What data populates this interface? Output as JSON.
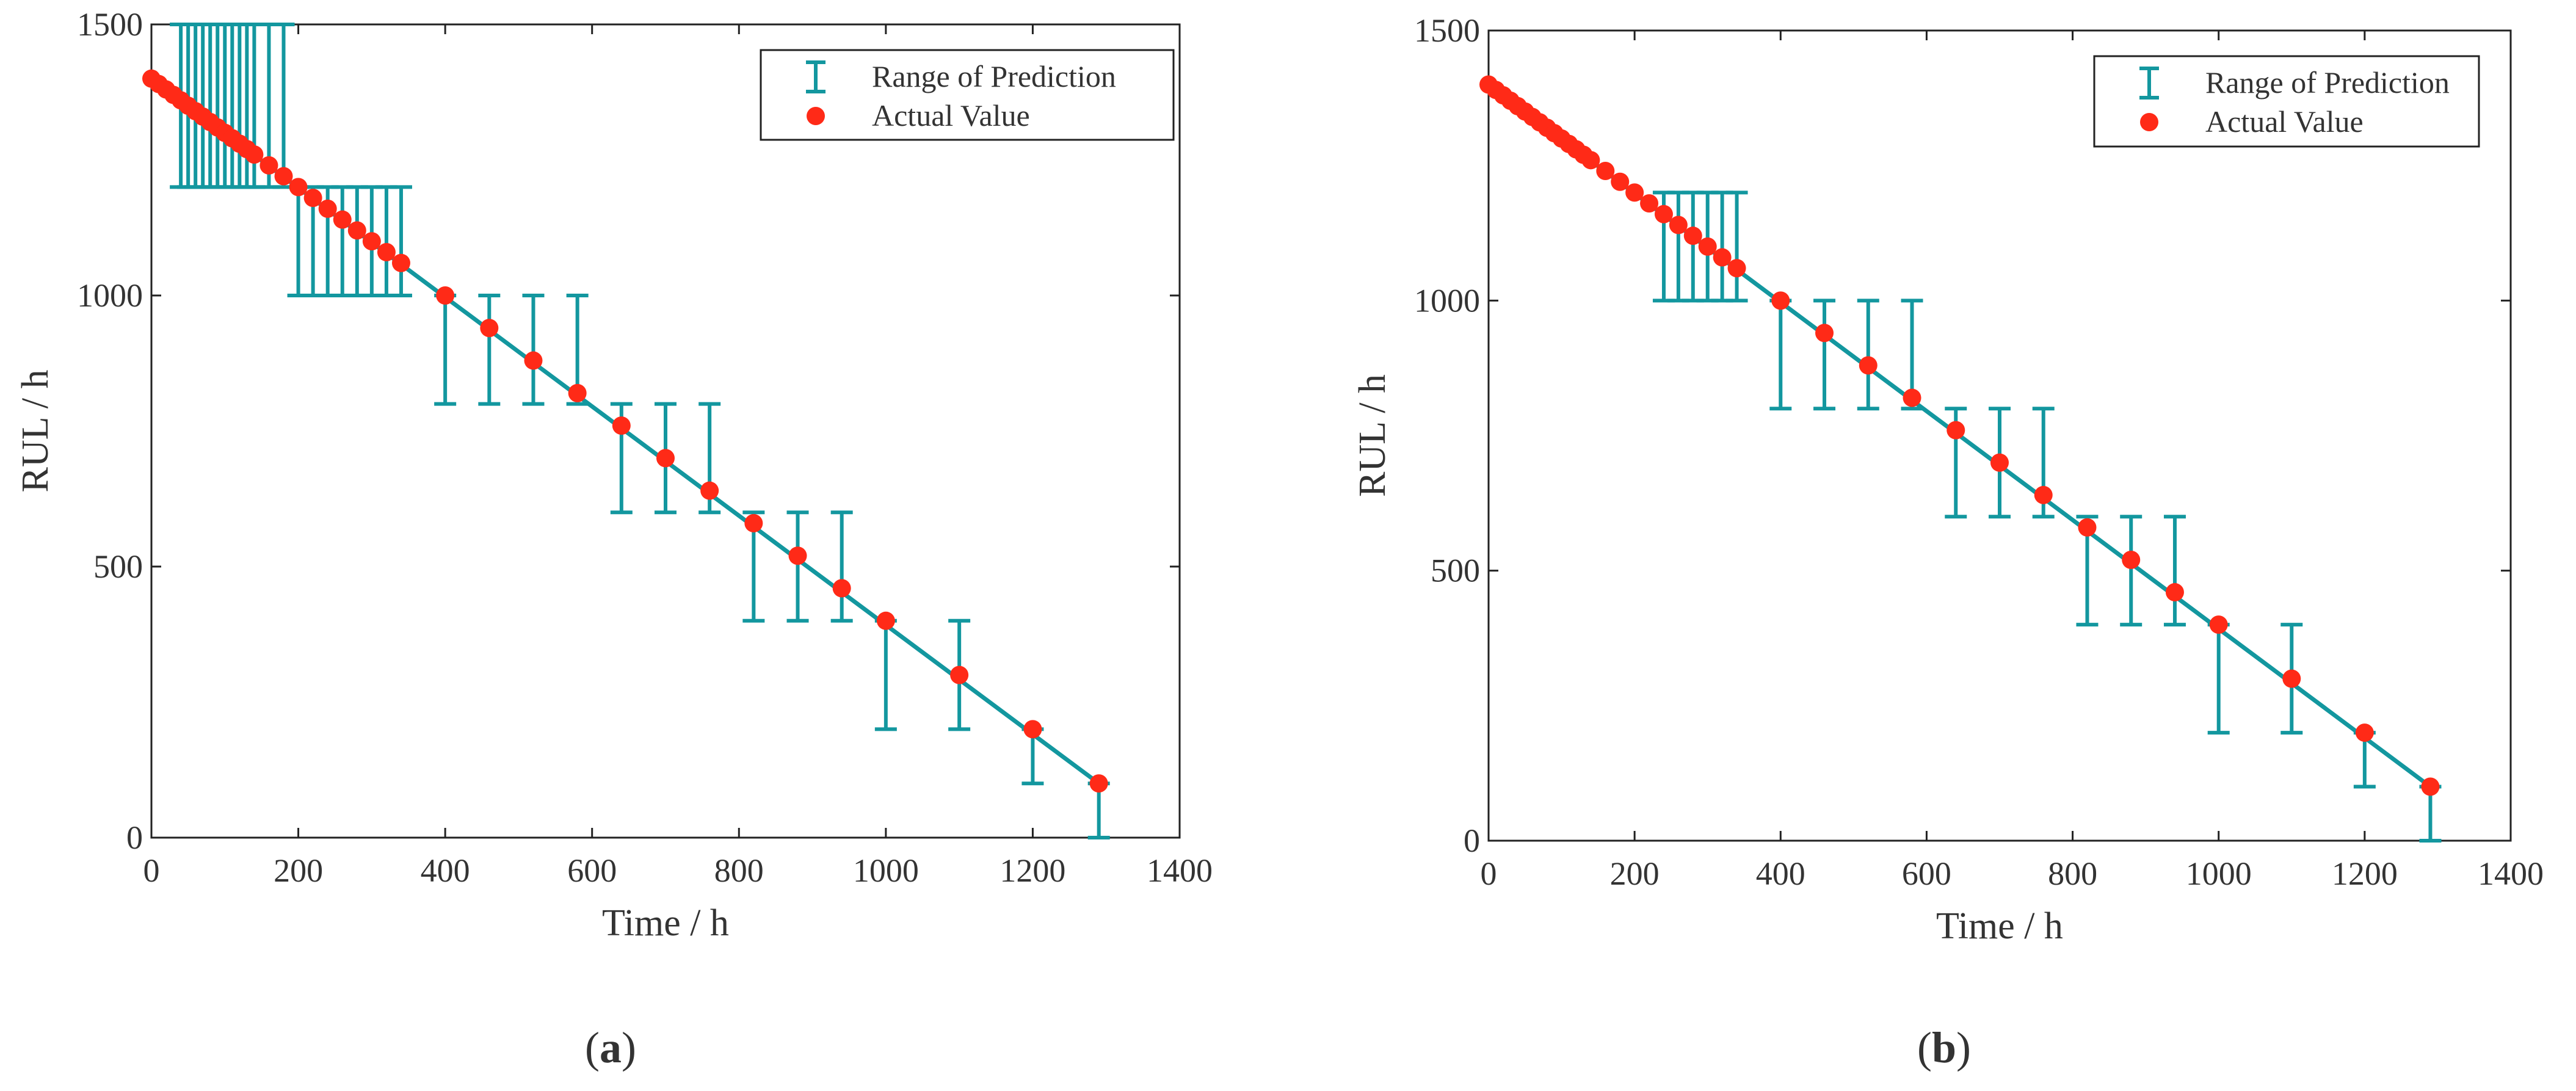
{
  "figure_captions": [
    {
      "open": "(",
      "letter": "a",
      "close": ")"
    },
    {
      "open": "(",
      "letter": "b",
      "close": ")"
    }
  ],
  "colors": {
    "range_bar": "#13979f",
    "actual_point": "#ff2a17",
    "axes": "#222222",
    "text": "#333333"
  },
  "chart_data": [
    {
      "id": "a",
      "type": "scatter",
      "xlabel": "Time / h",
      "ylabel": "RUL / h",
      "xlim": [
        0,
        1400
      ],
      "ylim": [
        0,
        1500
      ],
      "xticks": [
        0,
        200,
        400,
        600,
        800,
        1000,
        1200,
        1400
      ],
      "yticks": [
        0,
        500,
        1000,
        1500
      ],
      "legend": {
        "position": "top-right",
        "entries": [
          "Range of Prediction",
          "Actual Value"
        ]
      },
      "actual_line": {
        "x": [
          0,
          1290
        ],
        "y": [
          1400,
          100
        ]
      },
      "actual_points": {
        "x": [
          0,
          10,
          20,
          30,
          40,
          50,
          60,
          70,
          80,
          90,
          100,
          110,
          120,
          130,
          140,
          160,
          180,
          200,
          220,
          240,
          260,
          280,
          300,
          320,
          340,
          400,
          460,
          520,
          580,
          640,
          700,
          760,
          820,
          880,
          940,
          1000,
          1100,
          1200,
          1290
        ],
        "y": [
          1400,
          1390,
          1380,
          1370,
          1360,
          1350,
          1340,
          1330,
          1320,
          1310,
          1300,
          1290,
          1280,
          1270,
          1260,
          1240,
          1220,
          1200,
          1180,
          1160,
          1140,
          1120,
          1100,
          1080,
          1060,
          1000,
          940,
          880,
          820,
          760,
          700,
          640,
          580,
          520,
          460,
          400,
          300,
          200,
          100
        ]
      },
      "prediction_ranges": [
        {
          "x": 40,
          "low": 1200,
          "high": 1500
        },
        {
          "x": 50,
          "low": 1200,
          "high": 1500
        },
        {
          "x": 60,
          "low": 1200,
          "high": 1500
        },
        {
          "x": 70,
          "low": 1200,
          "high": 1500
        },
        {
          "x": 80,
          "low": 1200,
          "high": 1500
        },
        {
          "x": 90,
          "low": 1200,
          "high": 1500
        },
        {
          "x": 100,
          "low": 1200,
          "high": 1500
        },
        {
          "x": 110,
          "low": 1200,
          "high": 1500
        },
        {
          "x": 120,
          "low": 1200,
          "high": 1500
        },
        {
          "x": 130,
          "low": 1200,
          "high": 1500
        },
        {
          "x": 140,
          "low": 1200,
          "high": 1500
        },
        {
          "x": 160,
          "low": 1200,
          "high": 1500
        },
        {
          "x": 180,
          "low": 1200,
          "high": 1500
        },
        {
          "x": 200,
          "low": 1000,
          "high": 1200
        },
        {
          "x": 220,
          "low": 1000,
          "high": 1200
        },
        {
          "x": 240,
          "low": 1000,
          "high": 1200
        },
        {
          "x": 260,
          "low": 1000,
          "high": 1200
        },
        {
          "x": 280,
          "low": 1000,
          "high": 1200
        },
        {
          "x": 300,
          "low": 1000,
          "high": 1200
        },
        {
          "x": 320,
          "low": 1000,
          "high": 1200
        },
        {
          "x": 340,
          "low": 1000,
          "high": 1200
        },
        {
          "x": 400,
          "low": 800,
          "high": 1000
        },
        {
          "x": 460,
          "low": 800,
          "high": 1000
        },
        {
          "x": 520,
          "low": 800,
          "high": 1000
        },
        {
          "x": 580,
          "low": 800,
          "high": 1000
        },
        {
          "x": 640,
          "low": 600,
          "high": 800
        },
        {
          "x": 700,
          "low": 600,
          "high": 800
        },
        {
          "x": 760,
          "low": 600,
          "high": 800
        },
        {
          "x": 820,
          "low": 400,
          "high": 600
        },
        {
          "x": 880,
          "low": 400,
          "high": 600
        },
        {
          "x": 940,
          "low": 400,
          "high": 600
        },
        {
          "x": 1000,
          "low": 200,
          "high": 400
        },
        {
          "x": 1100,
          "low": 200,
          "high": 400
        },
        {
          "x": 1200,
          "low": 100,
          "high": 200
        },
        {
          "x": 1290,
          "low": 0,
          "high": 100
        }
      ]
    },
    {
      "id": "b",
      "type": "scatter",
      "xlabel": "Time / h",
      "ylabel": "RUL / h",
      "xlim": [
        0,
        1400
      ],
      "ylim": [
        0,
        1500
      ],
      "xticks": [
        0,
        200,
        400,
        600,
        800,
        1000,
        1200,
        1400
      ],
      "yticks": [
        0,
        500,
        1000,
        1500
      ],
      "legend": {
        "position": "top-right",
        "entries": [
          "Range of Prediction",
          "Actual Value"
        ]
      },
      "actual_line": {
        "x": [
          0,
          1290
        ],
        "y": [
          1400,
          100
        ]
      },
      "actual_points": {
        "x": [
          0,
          10,
          20,
          30,
          40,
          50,
          60,
          70,
          80,
          90,
          100,
          110,
          120,
          130,
          140,
          160,
          180,
          200,
          220,
          240,
          260,
          280,
          300,
          320,
          340,
          400,
          460,
          520,
          580,
          640,
          700,
          760,
          820,
          880,
          940,
          1000,
          1100,
          1200,
          1290
        ],
        "y": [
          1400,
          1390,
          1380,
          1370,
          1360,
          1350,
          1340,
          1330,
          1320,
          1310,
          1300,
          1290,
          1280,
          1270,
          1260,
          1240,
          1220,
          1200,
          1180,
          1160,
          1140,
          1120,
          1100,
          1080,
          1060,
          1000,
          940,
          880,
          820,
          760,
          700,
          640,
          580,
          520,
          460,
          400,
          300,
          200,
          100
        ]
      },
      "prediction_ranges": [
        {
          "x": 240,
          "low": 1000,
          "high": 1200
        },
        {
          "x": 260,
          "low": 1000,
          "high": 1200
        },
        {
          "x": 280,
          "low": 1000,
          "high": 1200
        },
        {
          "x": 300,
          "low": 1000,
          "high": 1200
        },
        {
          "x": 320,
          "low": 1000,
          "high": 1200
        },
        {
          "x": 340,
          "low": 1000,
          "high": 1200
        },
        {
          "x": 400,
          "low": 800,
          "high": 1000
        },
        {
          "x": 460,
          "low": 800,
          "high": 1000
        },
        {
          "x": 520,
          "low": 800,
          "high": 1000
        },
        {
          "x": 580,
          "low": 800,
          "high": 1000
        },
        {
          "x": 640,
          "low": 600,
          "high": 800
        },
        {
          "x": 700,
          "low": 600,
          "high": 800
        },
        {
          "x": 760,
          "low": 600,
          "high": 800
        },
        {
          "x": 820,
          "low": 400,
          "high": 600
        },
        {
          "x": 880,
          "low": 400,
          "high": 600
        },
        {
          "x": 940,
          "low": 400,
          "high": 600
        },
        {
          "x": 1000,
          "low": 200,
          "high": 400
        },
        {
          "x": 1100,
          "low": 200,
          "high": 400
        },
        {
          "x": 1200,
          "low": 100,
          "high": 200
        },
        {
          "x": 1290,
          "low": 0,
          "high": 100
        }
      ]
    }
  ]
}
